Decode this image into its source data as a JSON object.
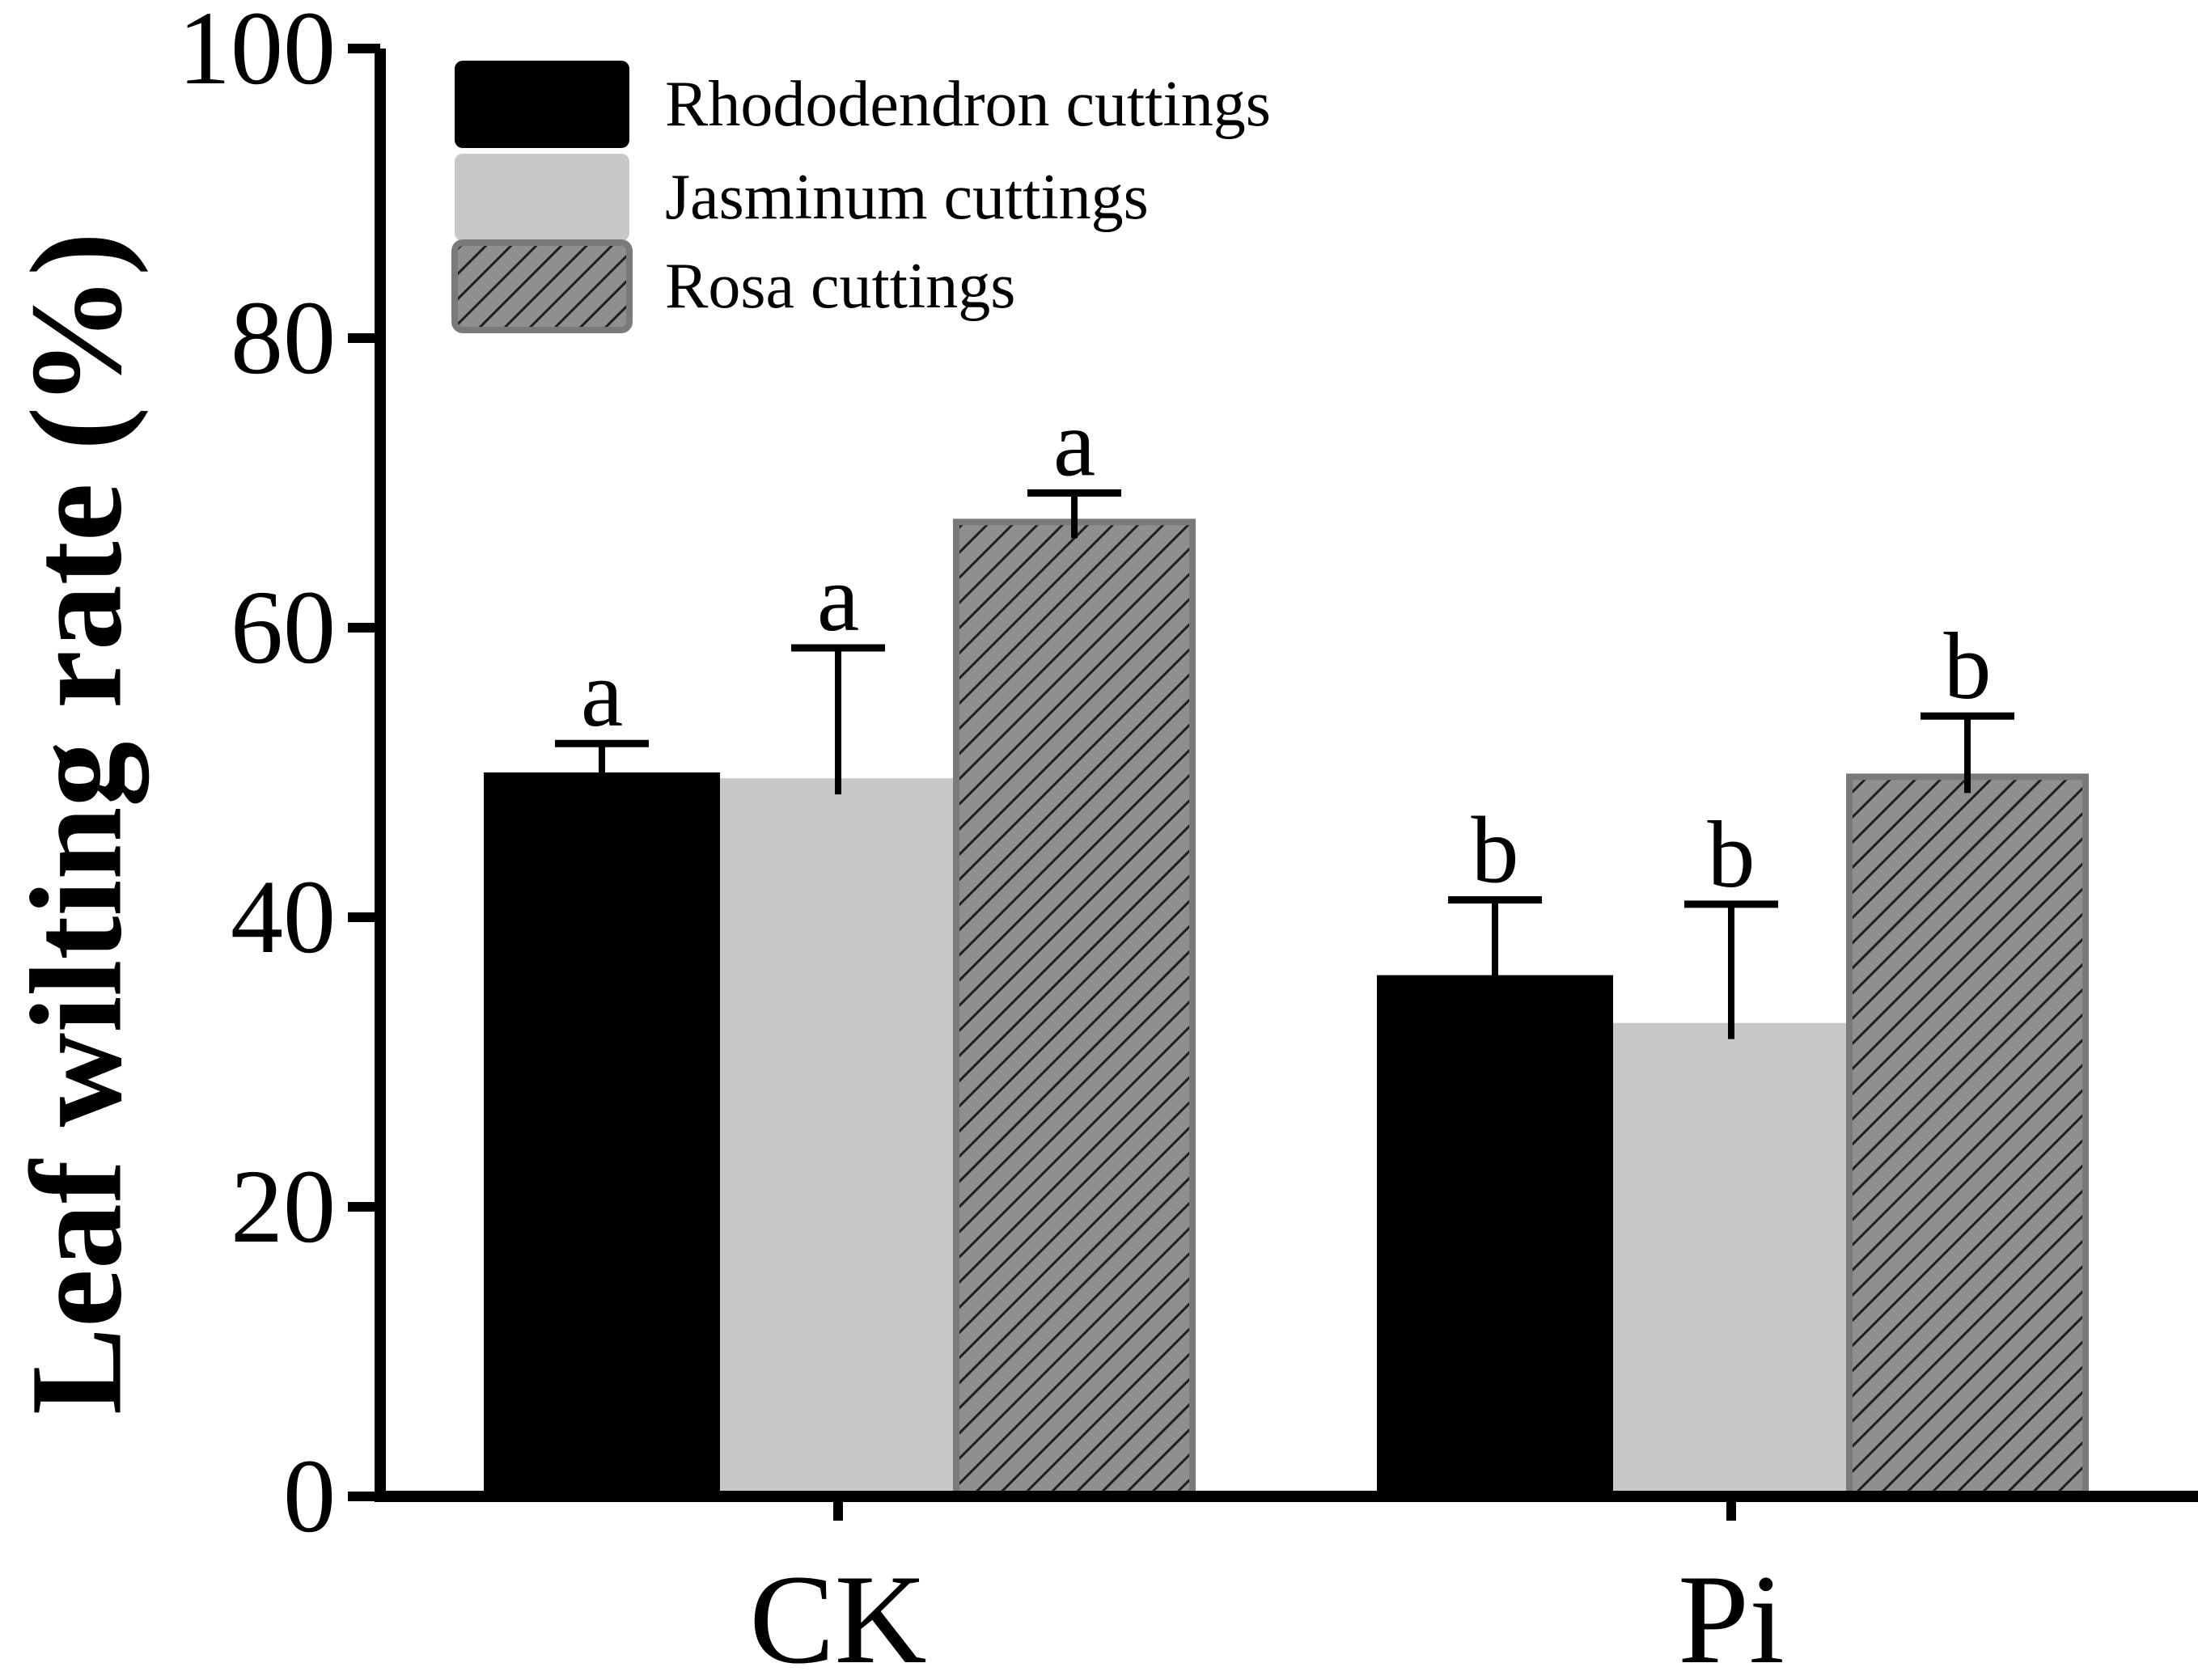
{
  "chart_data": {
    "type": "bar",
    "title": "",
    "xlabel": "",
    "ylabel": "Leaf wilting rate (%)",
    "ylim": [
      0,
      100
    ],
    "yticks": [
      0,
      20,
      40,
      60,
      80,
      100
    ],
    "ytick_labels": [
      "0",
      "20",
      "40",
      "60",
      "80",
      "100"
    ],
    "grid": false,
    "legend_position": "top-left",
    "categories": [
      "CK",
      "Pi"
    ],
    "series": [
      {
        "name": "Rhododendron cuttings",
        "values": [
          50,
          36
        ],
        "errors": [
          2,
          5.2
        ],
        "significance": [
          "a",
          "b"
        ],
        "color": "#000000",
        "pattern": "solid"
      },
      {
        "name": "Jasminum cuttings",
        "values": [
          49.6,
          32.7
        ],
        "errors": [
          9,
          8.2
        ],
        "significance": [
          "a",
          "b"
        ],
        "color": "#c8c8c8",
        "pattern": "solid"
      },
      {
        "name": "Rosa cuttings",
        "values": [
          67.3,
          49.7
        ],
        "errors": [
          2,
          4.2
        ],
        "significance": [
          "a",
          "b"
        ],
        "color": "#555555",
        "pattern": "hatched"
      }
    ]
  }
}
